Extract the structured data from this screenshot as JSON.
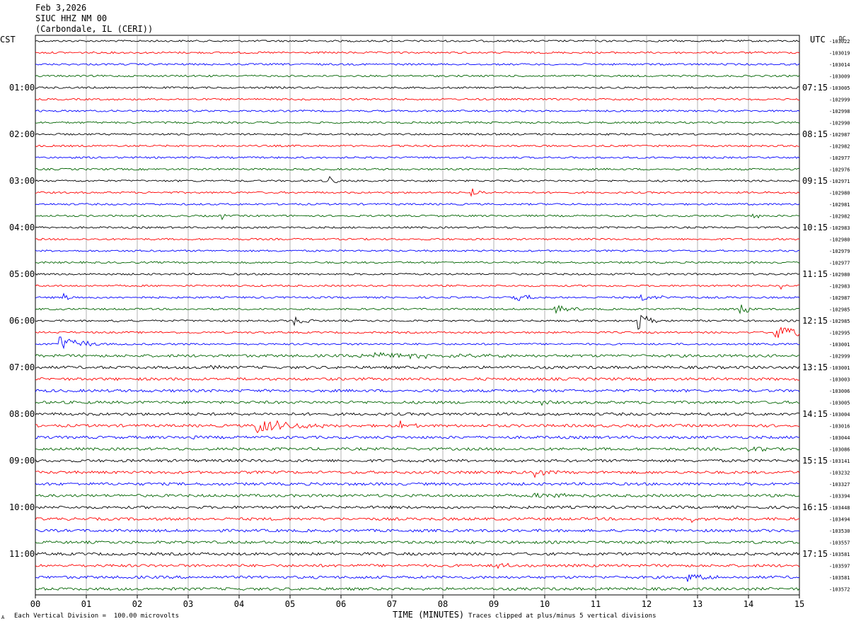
{
  "header": {
    "date": "Feb 3,2026",
    "station": "SIUC HHZ NM 00",
    "location": "(Carbondale, IL (CERI))",
    "left_tz": "CST",
    "right_tz": "UTC",
    "dc_label": "DC"
  },
  "footer": {
    "scale_note": "Each Vertical Division =  100.00 microvolts",
    "clip_note": "Traces clipped at plus/minus 5 vertical divisions",
    "corner_mark": "A"
  },
  "colors": {
    "trace_cycle": [
      "#000000",
      "#ff0000",
      "#0000ff",
      "#006400"
    ],
    "grid": "#808080"
  },
  "chart_data": {
    "type": "line",
    "title": "",
    "xlabel": "TIME (MINUTES)",
    "x_ticks": [
      "00",
      "01",
      "02",
      "03",
      "04",
      "05",
      "06",
      "07",
      "08",
      "09",
      "10",
      "11",
      "12",
      "13",
      "14",
      "15"
    ],
    "xlim": [
      0,
      15
    ],
    "left_hour_labels": [
      "01:00",
      "02:00",
      "03:00",
      "04:00",
      "05:00",
      "06:00",
      "07:00",
      "08:00",
      "09:00",
      "10:00",
      "11:00"
    ],
    "right_hour_labels": [
      "07:15",
      "08:15",
      "09:15",
      "10:15",
      "11:15",
      "12:15",
      "13:15",
      "14:15",
      "15:15",
      "16:15",
      "17:15"
    ],
    "trace_offsets": [
      "-103022",
      "-103019",
      "-103014",
      "-103009",
      "-103005",
      "-102999",
      "-102998",
      "-102990",
      "-102987",
      "-102982",
      "-102977",
      "-102976",
      "-102971",
      "-102980",
      "-102981",
      "-102982",
      "-102983",
      "-102980",
      "-102979",
      "-102977",
      "-102980",
      "-102983",
      "-102987",
      "-102985",
      "-102985",
      "-102995",
      "-103001",
      "-102999",
      "-103001",
      "-103003",
      "-103006",
      "-103005",
      "-103004",
      "-103016",
      "-103044",
      "-103086",
      "-103141",
      "-103232",
      "-103327",
      "-103394",
      "-103448",
      "-103494",
      "-103530",
      "-103557",
      "-103581",
      "-103597",
      "-103581",
      "-103572"
    ],
    "events": [
      {
        "trace": 12,
        "minute": 5.78,
        "amp": 7,
        "dur": 0.12
      },
      {
        "trace": 13,
        "minute": 8.55,
        "amp": 6,
        "dur": 0.2
      },
      {
        "trace": 15,
        "minute": 3.65,
        "amp": 6,
        "dur": 0.1
      },
      {
        "trace": 15,
        "minute": 14.1,
        "amp": 5,
        "dur": 0.1
      },
      {
        "trace": 22,
        "minute": 0.55,
        "amp": 7,
        "dur": 0.12
      },
      {
        "trace": 22,
        "minute": 9.4,
        "amp": 5,
        "dur": 0.4
      },
      {
        "trace": 22,
        "minute": 11.9,
        "amp": 4,
        "dur": 0.5
      },
      {
        "trace": 21,
        "minute": 14.65,
        "amp": 6,
        "dur": 0.08
      },
      {
        "trace": 23,
        "minute": 10.2,
        "amp": 5,
        "dur": 0.3
      },
      {
        "trace": 23,
        "minute": 13.85,
        "amp": 8,
        "dur": 0.15
      },
      {
        "trace": 24,
        "minute": 1.55,
        "amp": 6,
        "dur": 0.05
      },
      {
        "trace": 24,
        "minute": 5.05,
        "amp": 7,
        "dur": 0.25
      },
      {
        "trace": 24,
        "minute": 11.85,
        "amp": 14,
        "dur": 0.2
      },
      {
        "trace": 25,
        "minute": 14.5,
        "amp": 10,
        "dur": 0.6
      },
      {
        "trace": 26,
        "minute": 0.45,
        "amp": 12,
        "dur": 0.45
      },
      {
        "trace": 27,
        "minute": 6.3,
        "amp": 5,
        "dur": 1.5
      },
      {
        "trace": 28,
        "minute": 3.4,
        "amp": 4,
        "dur": 0.2
      },
      {
        "trace": 31,
        "minute": 9.9,
        "amp": 5,
        "dur": 0.15
      },
      {
        "trace": 33,
        "minute": 4.35,
        "amp": 11,
        "dur": 0.7
      },
      {
        "trace": 33,
        "minute": 7.15,
        "amp": 8,
        "dur": 0.2
      },
      {
        "trace": 34,
        "minute": 3.1,
        "amp": 5,
        "dur": 0.15
      },
      {
        "trace": 35,
        "minute": 14.0,
        "amp": 6,
        "dur": 0.2
      },
      {
        "trace": 37,
        "minute": 9.8,
        "amp": 6,
        "dur": 0.25
      },
      {
        "trace": 39,
        "minute": 9.8,
        "amp": 5,
        "dur": 0.6
      },
      {
        "trace": 41,
        "minute": 12.9,
        "amp": 5,
        "dur": 0.15
      },
      {
        "trace": 45,
        "minute": 9.1,
        "amp": 5,
        "dur": 0.15
      },
      {
        "trace": 46,
        "minute": 12.8,
        "amp": 7,
        "dur": 0.3
      }
    ]
  }
}
